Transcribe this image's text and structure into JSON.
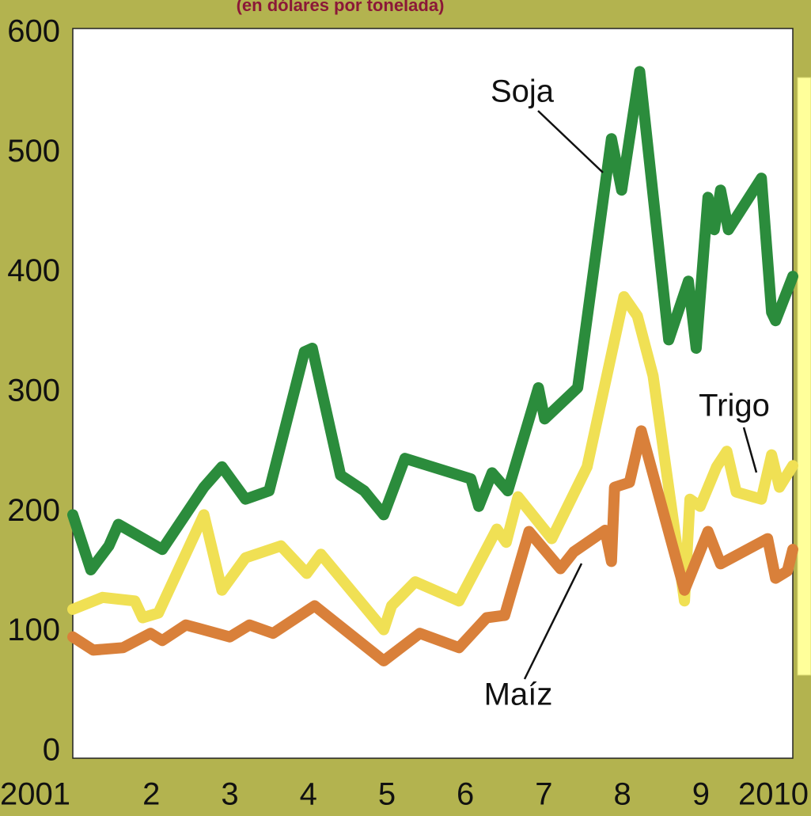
{
  "chart_data": {
    "type": "line",
    "subtitle": "(en dólares por tonelada)",
    "xlim": [
      2001,
      2010.17
    ],
    "xticks": [
      {
        "value": 2001,
        "label": "2001"
      },
      {
        "value": 2002,
        "label": "2"
      },
      {
        "value": 2003,
        "label": "3"
      },
      {
        "value": 2004,
        "label": "4"
      },
      {
        "value": 2005,
        "label": "5"
      },
      {
        "value": 2006,
        "label": "6"
      },
      {
        "value": 2007,
        "label": "7"
      },
      {
        "value": 2008,
        "label": "8"
      },
      {
        "value": 2009,
        "label": "9"
      },
      {
        "value": 2010,
        "label": "2010"
      }
    ],
    "ylim": [
      0,
      600
    ],
    "yticks": [
      0,
      100,
      200,
      300,
      400,
      500,
      600
    ],
    "grid": false,
    "series": [
      {
        "name": "Soja",
        "color": "#2b8c3c",
        "x": [
          2001.0,
          2001.23,
          2001.46,
          2001.58,
          2002.14,
          2002.67,
          2002.9,
          2003.2,
          2003.5,
          2003.95,
          2004.05,
          2004.41,
          2004.71,
          2004.96,
          2005.23,
          2006.07,
          2006.17,
          2006.34,
          2006.54,
          2006.93,
          2007.01,
          2007.43,
          2007.86,
          2007.99,
          2008.22,
          2008.59,
          2008.84,
          2008.94,
          2009.09,
          2009.17,
          2009.25,
          2009.35,
          2009.77,
          2009.9,
          2009.95,
          2010.17
        ],
        "values": [
          198,
          152,
          172,
          190,
          169,
          221,
          238,
          211,
          218,
          334,
          337,
          231,
          218,
          198,
          245,
          228,
          205,
          233,
          218,
          304,
          278,
          304,
          512,
          469,
          568,
          344,
          393,
          337,
          463,
          436,
          469,
          436,
          479,
          367,
          360,
          397
        ]
      },
      {
        "name": "Trigo",
        "color": "#f0e054",
        "x": [
          2001.0,
          2001.38,
          2001.79,
          2001.89,
          2002.09,
          2002.67,
          2002.9,
          2003.2,
          2003.65,
          2003.98,
          2004.16,
          2004.96,
          2005.06,
          2005.36,
          2005.92,
          2006.4,
          2006.52,
          2006.67,
          2007.1,
          2007.55,
          2008.02,
          2008.19,
          2008.39,
          2008.79,
          2008.86,
          2008.99,
          2009.2,
          2009.33,
          2009.45,
          2009.77,
          2009.9,
          2010.0,
          2010.17
        ],
        "values": [
          119,
          129,
          126,
          112,
          116,
          198,
          135,
          162,
          172,
          149,
          165,
          102,
          122,
          142,
          126,
          186,
          175,
          213,
          178,
          238,
          380,
          364,
          314,
          126,
          211,
          205,
          238,
          251,
          217,
          211,
          248,
          221,
          239
        ]
      },
      {
        "name": "Maíz",
        "color": "#d9803a",
        "x": [
          2001.0,
          2001.26,
          2001.64,
          2001.99,
          2002.14,
          2002.44,
          2003.0,
          2003.25,
          2003.55,
          2004.08,
          2004.96,
          2005.42,
          2005.92,
          2006.27,
          2006.5,
          2006.81,
          2007.21,
          2007.38,
          2007.78,
          2007.86,
          2007.9,
          2008.09,
          2008.24,
          2008.79,
          2009.09,
          2009.25,
          2009.85,
          2009.95,
          2010.1,
          2010.17
        ],
        "values": [
          96,
          85,
          87,
          99,
          93,
          106,
          96,
          106,
          99,
          122,
          76,
          99,
          87,
          112,
          114,
          184,
          153,
          167,
          185,
          159,
          221,
          225,
          268,
          135,
          184,
          157,
          178,
          145,
          151,
          169
        ]
      }
    ]
  }
}
